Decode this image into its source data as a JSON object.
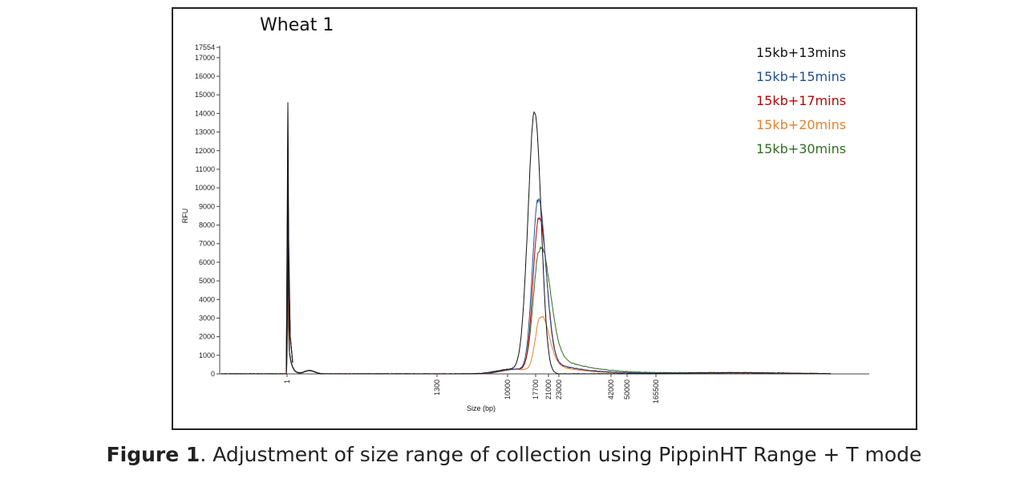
{
  "chart_data": {
    "type": "line",
    "title": "Wheat 1",
    "xlabel": "Size (bp)",
    "ylabel": "RFU",
    "ylim": [
      0,
      17554
    ],
    "yticks": [
      0,
      1000,
      2000,
      3000,
      4000,
      5000,
      6000,
      7000,
      8000,
      9000,
      10000,
      11000,
      12000,
      13000,
      14000,
      15000,
      16000,
      17000,
      17554
    ],
    "xtick_labels": [
      "1",
      "1300",
      "10000",
      "17700",
      "21000",
      "23000",
      "42000",
      "50000",
      "165500"
    ],
    "legend_position": "top-right",
    "grid": false,
    "series": [
      {
        "name": "15kb+13mins",
        "color": "#111111",
        "marker_peak": 14600,
        "main_peak": 14100
      },
      {
        "name": "15kb+15mins",
        "color": "#1f4e9a",
        "marker_peak": 12500,
        "main_peak": 9300
      },
      {
        "name": "15kb+17mins",
        "color": "#c00000",
        "marker_peak": 10400,
        "main_peak": 8350
      },
      {
        "name": "15kb+20mins",
        "color": "#e8802a",
        "marker_peak": 4200,
        "main_peak": 3000
      },
      {
        "name": "15kb+30mins",
        "color": "#2f6e1f",
        "marker_peak": 7800,
        "main_peak": 6600
      }
    ]
  },
  "caption": {
    "label": "Figure 1",
    "text": ". Adjustment of size range of collection using PippinHT Range + T mode"
  }
}
